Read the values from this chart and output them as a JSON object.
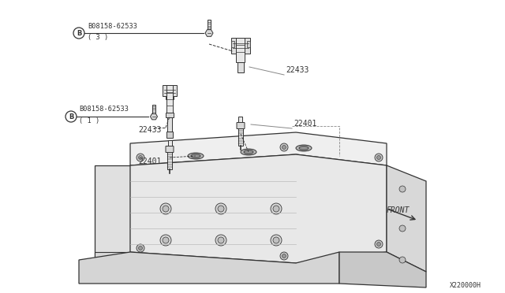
{
  "bg_color": "#ffffff",
  "lc": "#333333",
  "gray1": "#d0d0d0",
  "gray2": "#b8b8b8",
  "gray3": "#e8e8e8",
  "diagram_id": "X220000H",
  "front_label": "FRONT",
  "label_bolt_top_line1": "B08158-62533",
  "label_bolt_top_line2": "( 3 )",
  "label_bolt_mid_line1": "B08158-62533",
  "label_bolt_mid_line2": "( 1 )",
  "label_coil": "22433",
  "label_plug": "22401"
}
